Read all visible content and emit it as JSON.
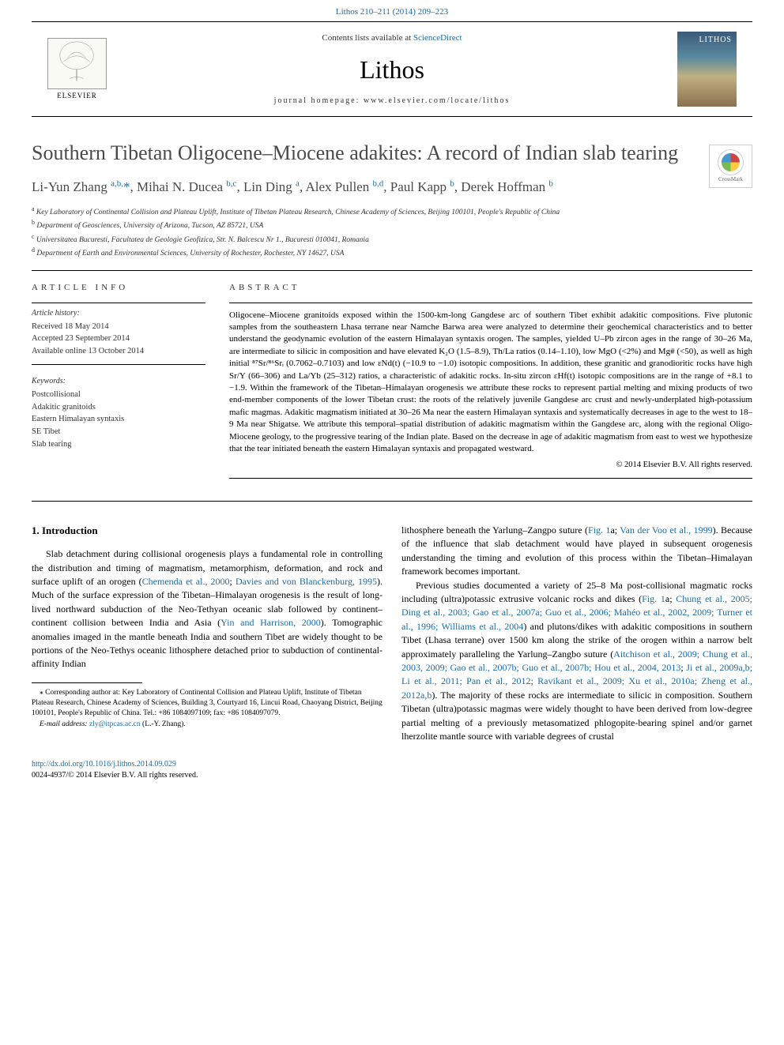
{
  "header": {
    "citation_link": "Lithos 210–211 (2014) 209–223",
    "contents_prefix": "Contents lists available at ",
    "contents_link": "ScienceDirect",
    "journal": "Lithos",
    "homepage_prefix": "journal homepage: ",
    "homepage_url": "www.elsevier.com/locate/lithos",
    "publisher": "ELSEVIER",
    "cover_label": "LITHOS"
  },
  "crossmark": "CrossMark",
  "title": "Southern Tibetan Oligocene–Miocene adakites: A record of Indian slab tearing",
  "authors_html": "Li-Yun Zhang <sup>a,b,</sup><span class='star-sup'>*</span>, Mihai N. Ducea <sup>b,c</sup>, Lin Ding <sup>a</sup>, Alex Pullen <sup>b,d</sup>, Paul Kapp <sup>b</sup>, Derek Hoffman <sup>b</sup>",
  "affiliations": {
    "a": "Key Laboratory of Continental Collision and Plateau Uplift, Institute of Tibetan Plateau Research, Chinese Academy of Sciences, Beijing 100101, People's Republic of China",
    "b": "Department of Geosciences, University of Arizona, Tucson, AZ 85721, USA",
    "c": "Universitatea Bucuresti, Facultatea de Geologie Geofizica, Str. N. Balcescu Nr 1., Bucuresti 010041, Romania",
    "d": "Department of Earth and Environmental Sciences, University of Rochester, Rochester, NY 14627, USA"
  },
  "article_info": {
    "heading": "ARTICLE INFO",
    "history_label": "Article history:",
    "received": "Received 18 May 2014",
    "accepted": "Accepted 23 September 2014",
    "online": "Available online 13 October 2014",
    "keywords_label": "Keywords:",
    "keywords": [
      "Postcollisional",
      "Adakitic granitoids",
      "Eastern Himalayan syntaxis",
      "SE Tibet",
      "Slab tearing"
    ]
  },
  "abstract": {
    "heading": "ABSTRACT",
    "text": "Oligocene–Miocene granitoids exposed within the 1500-km-long Gangdese arc of southern Tibet exhibit adakitic compositions. Five plutonic samples from the southeastern Lhasa terrane near Namche Barwa area were analyzed to determine their geochemical characteristics and to better understand the geodynamic evolution of the eastern Himalayan syntaxis orogen. The samples, yielded U–Pb zircon ages in the range of 30–26 Ma, are intermediate to silicic in composition and have elevated K₂O (1.5–8.9), Th/La ratios (0.14–1.10), low MgO (<2%) and Mg# (<50), as well as high initial ⁸⁷Sr/⁸⁶Srᵢ (0.7062–0.7103) and low εNd(t) (−10.9 to −1.0) isotopic compositions. In addition, these granitic and granodioritic rocks have high Sr/Y (66–306) and La/Yb (25–312) ratios, a characteristic of adakitic rocks. In-situ zircon εHf(t) isotopic compositions are in the range of +8.1 to −1.9. Within the framework of the Tibetan–Himalayan orogenesis we attribute these rocks to represent partial melting and mixing products of two end-member components of the lower Tibetan crust: the roots of the relatively juvenile Gangdese arc crust and newly-underplated high-potassium mafic magmas. Adakitic magmatism initiated at 30–26 Ma near the eastern Himalayan syntaxis and systematically decreases in age to the west to 18–9 Ma near Shigatse. We attribute this temporal–spatial distribution of adakitic magmatism within the Gangdese arc, along with the regional Oligo-Miocene geology, to the progressive tearing of the Indian plate. Based on the decrease in age of adakitic magmatism from east to west we hypothesize that the tear initiated beneath the eastern Himalayan syntaxis and propagated westward.",
    "copyright": "© 2014 Elsevier B.V. All rights reserved."
  },
  "body": {
    "intro_heading": "1. Introduction",
    "para1_pre": "Slab detachment during collisional orogenesis plays a fundamental role in controlling the distribution and timing of magmatism, metamorphism, deformation, and rock and surface uplift of an orogen (",
    "para1_link1": "Chemenda et al., 2000",
    "para1_mid1": "; ",
    "para1_link2": "Davies and von Blanckenburg, 1995",
    "para1_mid2": "). Much of the surface expression of the Tibetan–Himalayan orogenesis is the result of long-lived northward subduction of the Neo-Tethyan oceanic slab followed by continent–continent collision between India and Asia (",
    "para1_link3": "Yin and Harrison, 2000",
    "para1_post": "). Tomographic anomalies imaged in the mantle beneath India and southern Tibet are widely thought to be portions of the Neo-Tethys oceanic lithosphere detached prior to subduction of continental-affinity Indian",
    "para1b_pre": "lithosphere beneath the Yarlung–Zangpo suture (",
    "para1b_link1": "Fig. 1",
    "para1b_mid1": "a; ",
    "para1b_link2": "Van der Voo et al., 1999",
    "para1b_post": "). Because of the influence that slab detachment would have played in subsequent orogenesis understanding the timing and evolution of this process within the Tibetan–Himalayan framework becomes important.",
    "para2_pre": "Previous studies documented a variety of 25–8 Ma post-collisional magmatic rocks including (ultra)potassic extrusive volcanic rocks and dikes (",
    "para2_link1": "Fig. 1",
    "para2_mid1": "a; ",
    "para2_link2": "Chung et al., 2005; Ding et al., 2003; Gao et al., 2007a; Guo et al., 2006; Mahéo et al., 2002, 2009; Turner et al., 1996; Williams et al., 2004",
    "para2_mid2": ") and plutons/dikes with adakitic compositions in southern Tibet (Lhasa terrane) over 1500 km along the strike of the orogen within a narrow belt approximately paralleling the Yarlung–Zangbo suture (",
    "para2_link3": "Aitchison et al., 2009; Chung et al., 2003, 2009; Gao et al., 2007b; Guo et al., 2007b; Hou et al., 2004, 2013",
    "para2_mid3": "; ",
    "para2_link4": "Ji et al., 2009a,b; Li et al., 2011; Pan et al., 2012; Ravikant et al., 2009; Xu et al., 2010a; Zheng et al., 2012a,b",
    "para2_post": "). The majority of these rocks are intermediate to silicic in composition. Southern Tibetan (ultra)potassic magmas were widely thought to have been derived from low-degree partial melting of a previously metasomatized phlogopite-bearing spinel and/or garnet lherzolite mantle source with variable degrees of crustal"
  },
  "footnote": {
    "corresponding": "⁎ Corresponding author at: Key Laboratory of Continental Collision and Plateau Uplift, Institute of Tibetan Plateau Research, Chinese Academy of Sciences, Building 3, Courtyard 16, Lincui Road, Chaoyang District, Beijing 100101, People's Republic of China. Tel.: +86 1084097109; fax: +86 1084097079.",
    "email_label": "E-mail address: ",
    "email": "zly@itpcas.ac.cn",
    "email_suffix": " (L.-Y. Zhang)."
  },
  "footer": {
    "doi": "http://dx.doi.org/10.1016/j.lithos.2014.09.029",
    "issn_copyright": "0024-4937/© 2014 Elsevier B.V. All rights reserved."
  },
  "colors": {
    "link": "#1a6ba8",
    "text": "#000000",
    "heading_gray": "#4a4a4a"
  }
}
